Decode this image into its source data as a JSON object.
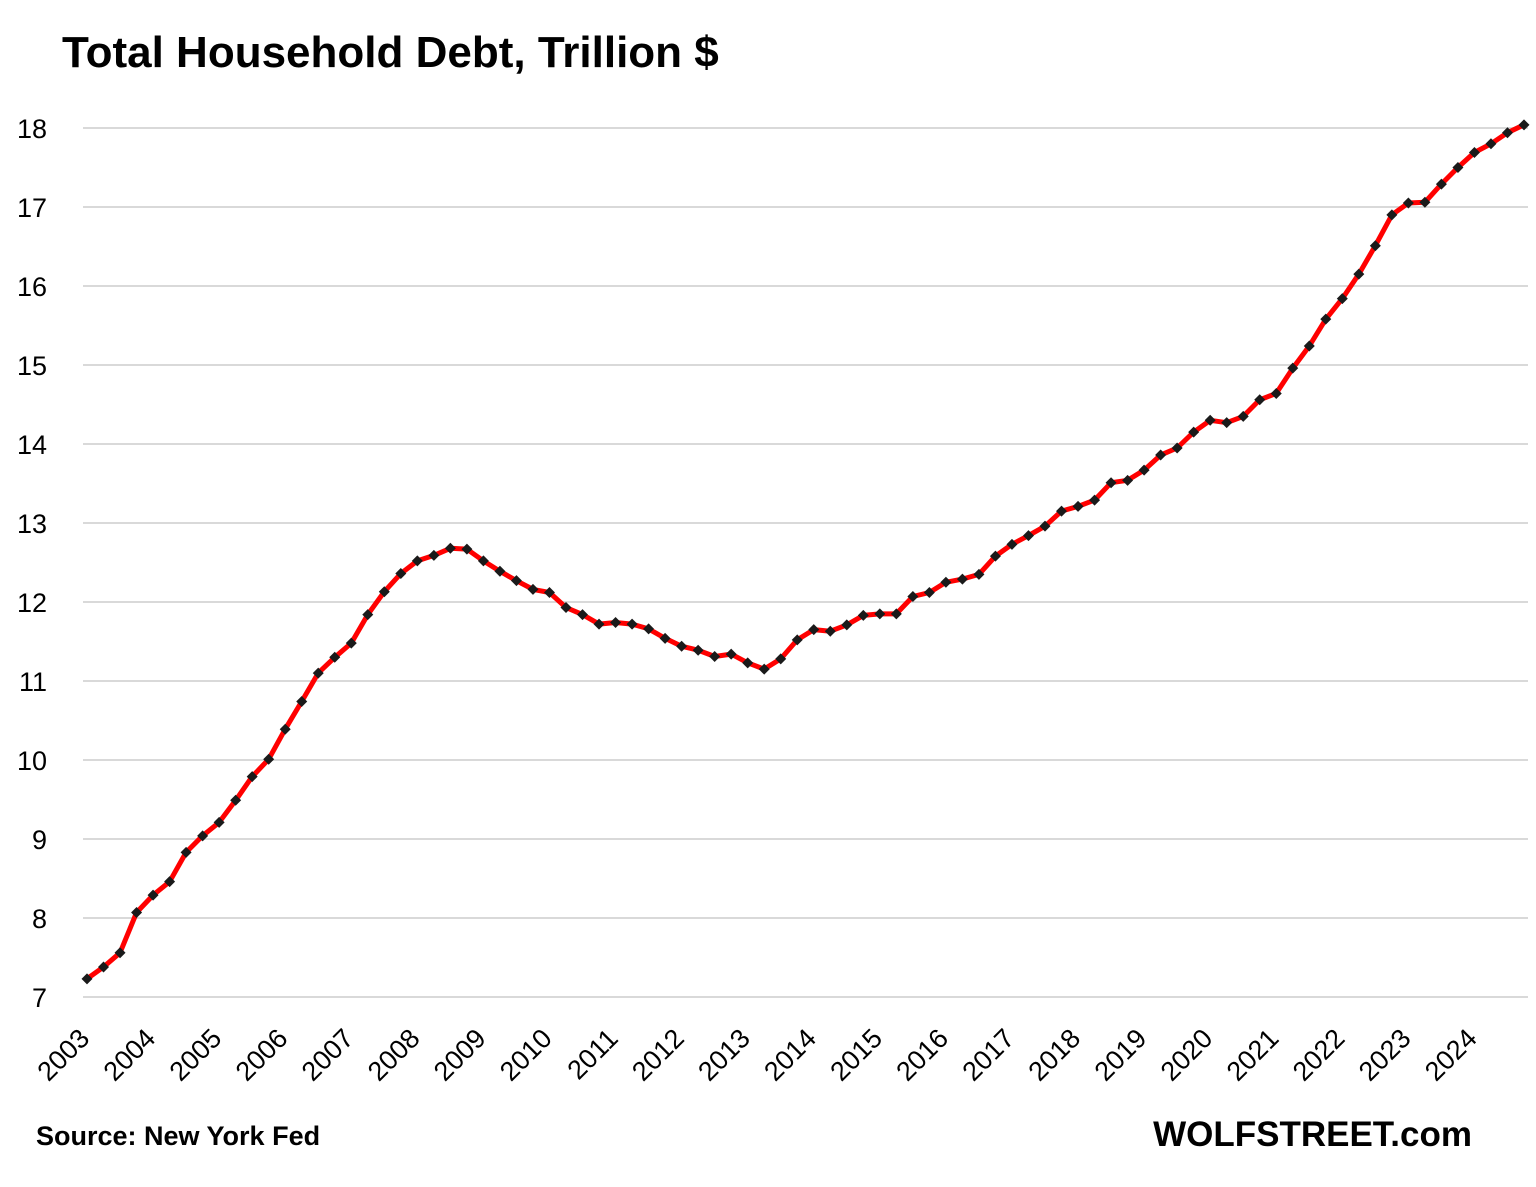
{
  "chart_data": {
    "type": "line",
    "title": "Total Household Debt, Trillion $",
    "xlabel": "",
    "ylabel": "",
    "ylim": [
      7,
      18
    ],
    "yticks": [
      "7",
      "8",
      "9",
      "10",
      "11",
      "12",
      "13",
      "14",
      "15",
      "16",
      "17",
      "18"
    ],
    "xticks": [
      "2003",
      "2004",
      "2005",
      "2006",
      "2007",
      "2008",
      "2009",
      "2010",
      "2011",
      "2012",
      "2013",
      "2014",
      "2015",
      "2016",
      "2017",
      "2018",
      "2019",
      "2020",
      "2021",
      "2022",
      "2023",
      "2024"
    ],
    "grid": true,
    "legend": "none",
    "frequency": "quarterly",
    "x_start": "2003-Q1",
    "series": [
      {
        "color": "#ff0000",
        "marker_color": "#1a1a1a",
        "values": [
          7.23,
          7.38,
          7.56,
          8.07,
          8.29,
          8.46,
          8.83,
          9.04,
          9.21,
          9.49,
          9.79,
          10.01,
          10.39,
          10.74,
          11.1,
          11.3,
          11.48,
          11.84,
          12.13,
          12.36,
          12.52,
          12.59,
          12.68,
          12.67,
          12.52,
          12.39,
          12.27,
          12.16,
          12.12,
          11.93,
          11.84,
          11.72,
          11.74,
          11.72,
          11.66,
          11.54,
          11.44,
          11.39,
          11.31,
          11.34,
          11.23,
          11.15,
          11.28,
          11.52,
          11.65,
          11.63,
          11.71,
          11.83,
          11.85,
          11.85,
          12.07,
          12.12,
          12.25,
          12.29,
          12.35,
          12.58,
          12.73,
          12.84,
          12.96,
          13.15,
          13.21,
          13.29,
          13.51,
          13.54,
          13.67,
          13.86,
          13.95,
          14.15,
          14.3,
          14.27,
          14.35,
          14.56,
          14.64,
          14.96,
          15.24,
          15.58,
          15.84,
          16.15,
          16.51,
          16.9,
          17.05,
          17.06,
          17.29,
          17.5,
          17.69,
          17.8,
          17.94,
          18.04
        ]
      }
    ]
  },
  "footer": {
    "source": "Source: New York Fed",
    "brand": "WOLFSTREET.com"
  }
}
